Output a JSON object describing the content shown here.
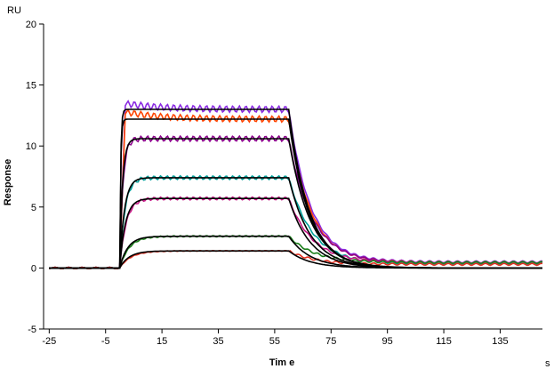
{
  "chart_data": {
    "type": "line",
    "title": "",
    "xlabel": "Tim e",
    "ylabel": "Response",
    "y_unit": "RU",
    "x_unit": "s",
    "xlim": [
      -27,
      150
    ],
    "ylim": [
      -5,
      20
    ],
    "x_ticks": [
      -25,
      -5,
      15,
      35,
      55,
      75,
      95,
      115,
      135
    ],
    "y_ticks": [
      -5,
      0,
      5,
      10,
      15,
      20
    ],
    "grid": false,
    "legend": "none",
    "association_start": 0,
    "dissociation_start": 60,
    "x_end": 150,
    "series": [
      {
        "color": "#8a2be2",
        "plateau": 13.0,
        "peak": 13.5,
        "ka": 2.0,
        "kd": 0.13,
        "residual": 0.5
      },
      {
        "color": "#ff4500",
        "plateau": 12.2,
        "peak": 12.8,
        "ka": 2.0,
        "kd": 0.13,
        "residual": 0.45
      },
      {
        "color": "#8b008b",
        "plateau": 10.6,
        "ka": 0.9,
        "kd": 0.12,
        "residual": 0.4
      },
      {
        "color": "#00a09a",
        "plateau": 7.4,
        "ka": 0.55,
        "kd": 0.12,
        "residual": 0.35
      },
      {
        "color": "#c71585",
        "plateau": 5.7,
        "ka": 0.45,
        "kd": 0.12,
        "residual": 0.45
      },
      {
        "color": "#1a7f1a",
        "plateau": 2.6,
        "ka": 0.3,
        "kd": 0.11,
        "residual": 0.45
      },
      {
        "color": "#e03020",
        "plateau": 1.4,
        "ka": 0.25,
        "kd": 0.11,
        "residual": 0.3
      }
    ],
    "fit": [
      {
        "color": "#000000",
        "plateau": 13.0,
        "ka": 3.0,
        "kd": 0.14
      },
      {
        "color": "#000000",
        "plateau": 12.2,
        "ka": 3.0,
        "kd": 0.14
      },
      {
        "color": "#000000",
        "plateau": 10.6,
        "ka": 1.0,
        "kd": 0.13
      },
      {
        "color": "#000000",
        "plateau": 7.4,
        "ka": 0.6,
        "kd": 0.13
      },
      {
        "color": "#000000",
        "plateau": 5.7,
        "ka": 0.5,
        "kd": 0.13
      },
      {
        "color": "#000000",
        "plateau": 2.6,
        "ka": 0.35,
        "kd": 0.13
      },
      {
        "color": "#000000",
        "plateau": 1.4,
        "ka": 0.3,
        "kd": 0.13
      }
    ]
  }
}
